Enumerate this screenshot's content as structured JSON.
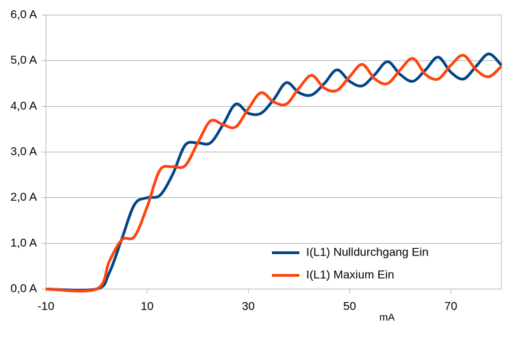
{
  "chart_data": {
    "type": "line",
    "x": [
      -10,
      0,
      2.5,
      5,
      7.5,
      10,
      12.5,
      15,
      17.5,
      20,
      22.5,
      25,
      27.5,
      30,
      32.5,
      35,
      37.5,
      40,
      42.5,
      45,
      47.5,
      50,
      52.5,
      55,
      57.5,
      60,
      62.5,
      65,
      67.5,
      70,
      72.5,
      75,
      77.5,
      80
    ],
    "series": [
      {
        "name": "I(L1) Nulldurchgang Ein",
        "color": "#004586",
        "values": [
          0,
          0,
          0.35,
          1.1,
          1.85,
          2.0,
          2.05,
          2.5,
          3.15,
          3.2,
          3.2,
          3.6,
          4.05,
          3.85,
          3.85,
          4.15,
          4.52,
          4.3,
          4.25,
          4.5,
          4.8,
          4.55,
          4.45,
          4.7,
          4.98,
          4.7,
          4.55,
          4.8,
          5.08,
          4.75,
          4.6,
          4.88,
          5.15,
          4.9
        ]
      },
      {
        "name": "I(L1) Maxium Ein",
        "color": "#ff420e",
        "values": [
          0,
          0,
          0.6,
          1.08,
          1.15,
          1.8,
          2.6,
          2.68,
          2.7,
          3.2,
          3.68,
          3.6,
          3.55,
          3.95,
          4.3,
          4.1,
          4.05,
          4.4,
          4.68,
          4.4,
          4.35,
          4.65,
          4.92,
          4.6,
          4.5,
          4.8,
          5.05,
          4.7,
          4.6,
          4.9,
          5.12,
          4.8,
          4.65,
          4.88
        ]
      }
    ],
    "x_label": "mA",
    "xlim": [
      -10,
      80
    ],
    "xticks": [
      -10,
      10,
      30,
      50,
      70
    ],
    "ylim": [
      0,
      6
    ],
    "yticks": [
      {
        "value": 0,
        "label": "0,0 A"
      },
      {
        "value": 1,
        "label": "1,0 A"
      },
      {
        "value": 2,
        "label": "2,0 A"
      },
      {
        "value": 3,
        "label": "3,0 A"
      },
      {
        "value": 4,
        "label": "4,0 A"
      },
      {
        "value": 5,
        "label": "5,0 A"
      },
      {
        "value": 6,
        "label": "6,0 A"
      }
    ],
    "grid": true,
    "legend": "lower right"
  }
}
